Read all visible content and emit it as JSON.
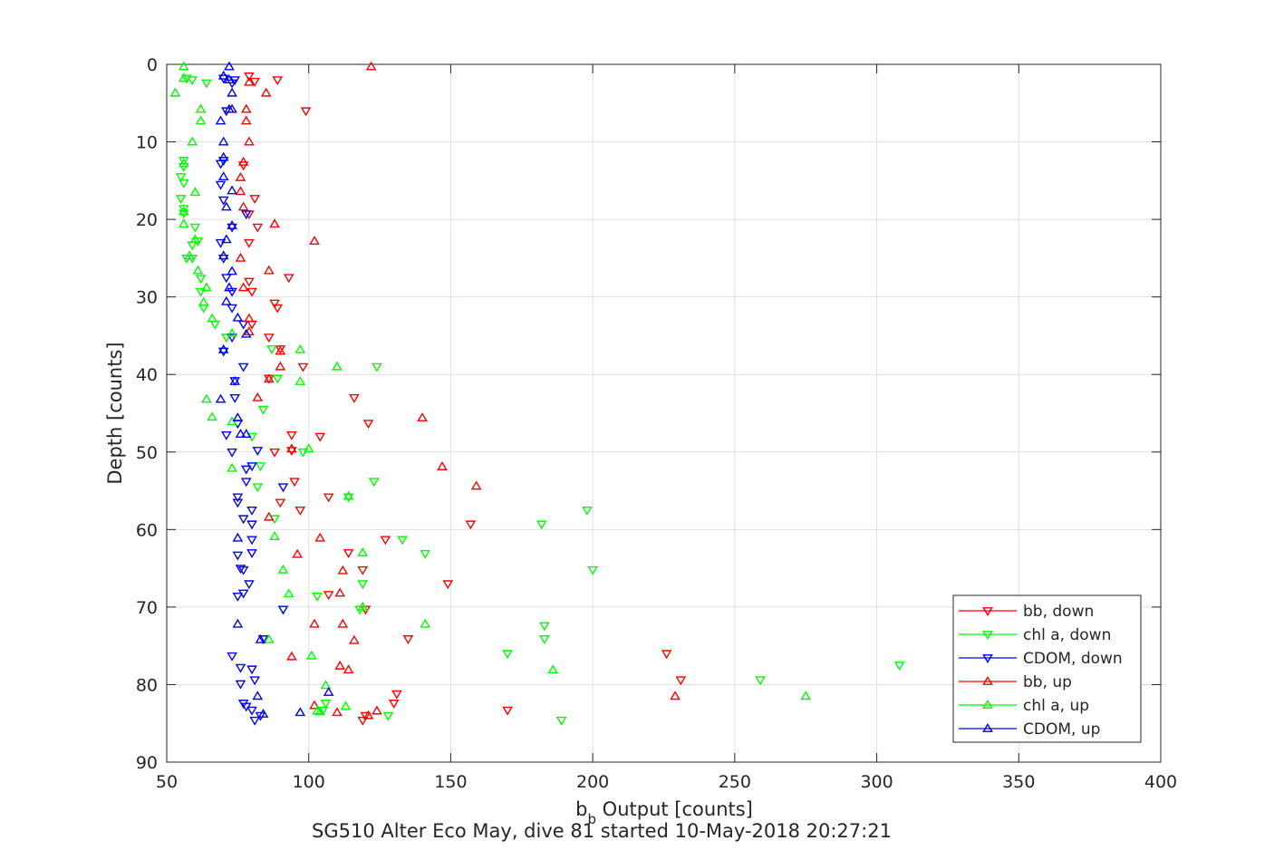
{
  "chart_data": {
    "type": "scatter",
    "xlabel_base": "b",
    "xlabel_sub": "b",
    "xlabel_rest": " Output [counts]",
    "ylabel": "Depth [counts]",
    "footer": "SG510 Alter Eco May, dive 81 started 10-May-2018 20:27:21",
    "xlim": [
      50,
      400
    ],
    "ylim": [
      0,
      90
    ],
    "y_reversed": true,
    "grid": true,
    "legend_position": "bottom-right",
    "x_ticks": [
      50,
      100,
      150,
      200,
      250,
      300,
      350,
      400
    ],
    "y_ticks": [
      0,
      10,
      20,
      30,
      40,
      50,
      60,
      70,
      80,
      90
    ],
    "series": [
      {
        "name": "bb, down",
        "color": "#ff0000",
        "marker": "triangle-down",
        "points": [
          [
            79,
            1.5
          ],
          [
            81,
            2.2
          ],
          [
            89,
            2
          ],
          [
            99,
            6
          ],
          [
            77,
            13
          ],
          [
            81,
            17.3
          ],
          [
            79,
            19.3
          ],
          [
            82,
            21
          ],
          [
            79,
            23
          ],
          [
            79,
            28
          ],
          [
            93,
            27.5
          ],
          [
            80,
            29.3
          ],
          [
            88,
            30.8
          ],
          [
            89,
            31.4
          ],
          [
            80,
            33.5
          ],
          [
            86,
            35.2
          ],
          [
            90,
            36.7
          ],
          [
            98,
            39
          ],
          [
            86,
            40.5
          ],
          [
            116,
            43
          ],
          [
            121,
            46.3
          ],
          [
            94,
            47.8
          ],
          [
            104,
            48
          ],
          [
            88,
            50
          ],
          [
            94,
            49.8
          ],
          [
            95,
            53.8
          ],
          [
            107,
            55.8
          ],
          [
            90,
            56.5
          ],
          [
            97,
            57.5
          ],
          [
            157,
            59.3
          ],
          [
            127,
            61.3
          ],
          [
            114,
            63
          ],
          [
            119,
            65.2
          ],
          [
            149,
            67
          ],
          [
            107,
            68.4
          ],
          [
            120,
            70.3
          ],
          [
            135,
            74.1
          ],
          [
            226,
            76
          ],
          [
            231,
            79.4
          ],
          [
            170,
            83.3
          ],
          [
            131,
            81.2
          ],
          [
            130,
            82.4
          ],
          [
            120,
            84
          ],
          [
            119,
            84.6
          ]
        ]
      },
      {
        "name": "chl a, down",
        "color": "#00ff00",
        "marker": "triangle-down",
        "points": [
          [
            57,
            1.8
          ],
          [
            59,
            2
          ],
          [
            64,
            2.4
          ],
          [
            56,
            12.4
          ],
          [
            56,
            13.2
          ],
          [
            55,
            14.5
          ],
          [
            56,
            15.3
          ],
          [
            55,
            17.3
          ],
          [
            56,
            18.6
          ],
          [
            56,
            19.2
          ],
          [
            60,
            21
          ],
          [
            61,
            22.8
          ],
          [
            59,
            23.3
          ],
          [
            57,
            25
          ],
          [
            59,
            25
          ],
          [
            62,
            27.6
          ],
          [
            62,
            29.3
          ],
          [
            63,
            31.4
          ],
          [
            67,
            33.5
          ],
          [
            71,
            35.2
          ],
          [
            87,
            36.7
          ],
          [
            124,
            39
          ],
          [
            89,
            40.5
          ],
          [
            84,
            44.5
          ],
          [
            80,
            48
          ],
          [
            98,
            50
          ],
          [
            83,
            51.8
          ],
          [
            123,
            53.8
          ],
          [
            82,
            54.5
          ],
          [
            114,
            55.8
          ],
          [
            198,
            57.5
          ],
          [
            88,
            58.6
          ],
          [
            182,
            59.3
          ],
          [
            133,
            61.3
          ],
          [
            141,
            63.1
          ],
          [
            200,
            65.2
          ],
          [
            119,
            67
          ],
          [
            103,
            68.6
          ],
          [
            91,
            70.3
          ],
          [
            118,
            70.3
          ],
          [
            183,
            72.4
          ],
          [
            183,
            74.1
          ],
          [
            170,
            76
          ],
          [
            308,
            77.5
          ],
          [
            259,
            79.4
          ],
          [
            106,
            82.4
          ],
          [
            105,
            83.3
          ],
          [
            128,
            84
          ],
          [
            189,
            84.6
          ]
        ]
      },
      {
        "name": "CDOM, down",
        "color": "#0000ff",
        "marker": "triangle-down",
        "points": [
          [
            70,
            1.8
          ],
          [
            74,
            2
          ],
          [
            73,
            2.4
          ],
          [
            71,
            6
          ],
          [
            69,
            12.8
          ],
          [
            70,
            12.4
          ],
          [
            69,
            15.5
          ],
          [
            70,
            17.5
          ],
          [
            78,
            19.3
          ],
          [
            73,
            21
          ],
          [
            69,
            23
          ],
          [
            70,
            25
          ],
          [
            71,
            27.5
          ],
          [
            73,
            29.3
          ],
          [
            73,
            31.4
          ],
          [
            77,
            33.5
          ],
          [
            73,
            35.2
          ],
          [
            70,
            37
          ],
          [
            77,
            39
          ],
          [
            74,
            40.8
          ],
          [
            74,
            43
          ],
          [
            75,
            46.3
          ],
          [
            71,
            47.8
          ],
          [
            73,
            50
          ],
          [
            82,
            49.8
          ],
          [
            80,
            51.8
          ],
          [
            78,
            52.2
          ],
          [
            78,
            53.8
          ],
          [
            91,
            54.5
          ],
          [
            75,
            55.8
          ],
          [
            75,
            56.5
          ],
          [
            80,
            57.5
          ],
          [
            77,
            58.6
          ],
          [
            80,
            59.3
          ],
          [
            80,
            61.3
          ],
          [
            75,
            63.3
          ],
          [
            80,
            63
          ],
          [
            76,
            65
          ],
          [
            77,
            65.2
          ],
          [
            79,
            67
          ],
          [
            75,
            68.6
          ],
          [
            77,
            68.2
          ],
          [
            91,
            70.3
          ],
          [
            84,
            74.1
          ],
          [
            76,
            77.8
          ],
          [
            73,
            76.3
          ],
          [
            80,
            78
          ],
          [
            76,
            79.9
          ],
          [
            81,
            79.4
          ],
          [
            77,
            82.4
          ],
          [
            78,
            82.8
          ],
          [
            80,
            83.3
          ],
          [
            83,
            84
          ],
          [
            81,
            84.6
          ]
        ]
      },
      {
        "name": "bb, up",
        "color": "#ff0000",
        "marker": "triangle-up",
        "points": [
          [
            122,
            0.3
          ],
          [
            79,
            2.3
          ],
          [
            85,
            3.7
          ],
          [
            78,
            5.8
          ],
          [
            78,
            7.3
          ],
          [
            79,
            10
          ],
          [
            77,
            12.6
          ],
          [
            76,
            14.6
          ],
          [
            76,
            16.4
          ],
          [
            77,
            18.4
          ],
          [
            88,
            20.6
          ],
          [
            102,
            22.8
          ],
          [
            76,
            25
          ],
          [
            86,
            26.6
          ],
          [
            77,
            28.8
          ],
          [
            79,
            32.8
          ],
          [
            79,
            34.5
          ],
          [
            90,
            37
          ],
          [
            90,
            39
          ],
          [
            86,
            40.6
          ],
          [
            82,
            43
          ],
          [
            140,
            45.6
          ],
          [
            94,
            49.6
          ],
          [
            147,
            51.9
          ],
          [
            159,
            54.4
          ],
          [
            86,
            58.4
          ],
          [
            104,
            61.1
          ],
          [
            96,
            63.2
          ],
          [
            112,
            65.3
          ],
          [
            111,
            68.2
          ],
          [
            102,
            72.2
          ],
          [
            112,
            72.2
          ],
          [
            116,
            74.3
          ],
          [
            94,
            76.4
          ],
          [
            111,
            77.6
          ],
          [
            114,
            78.1
          ],
          [
            229,
            81.5
          ],
          [
            102,
            82.7
          ],
          [
            124,
            83.4
          ],
          [
            121,
            84
          ],
          [
            110,
            83.6
          ]
        ]
      },
      {
        "name": "chl a, up",
        "color": "#00ff00",
        "marker": "triangle-up",
        "points": [
          [
            56,
            0.3
          ],
          [
            56,
            1.8
          ],
          [
            53,
            3.7
          ],
          [
            62,
            5.8
          ],
          [
            62,
            7.3
          ],
          [
            59,
            10
          ],
          [
            56,
            12.8
          ],
          [
            60,
            16.5
          ],
          [
            56,
            19
          ],
          [
            56,
            20.6
          ],
          [
            60,
            22.6
          ],
          [
            58,
            24.7
          ],
          [
            61,
            26.6
          ],
          [
            64,
            28.8
          ],
          [
            63,
            30.7
          ],
          [
            66,
            32.8
          ],
          [
            73,
            34.7
          ],
          [
            97,
            36.8
          ],
          [
            110,
            39
          ],
          [
            97,
            40.9
          ],
          [
            64,
            43.2
          ],
          [
            66,
            45.5
          ],
          [
            73,
            46.1
          ],
          [
            100,
            49.6
          ],
          [
            73,
            52.1
          ],
          [
            114,
            55.7
          ],
          [
            88,
            60.9
          ],
          [
            119,
            63
          ],
          [
            91,
            65.2
          ],
          [
            93,
            68.3
          ],
          [
            119,
            70
          ],
          [
            141,
            72.2
          ],
          [
            86,
            74.2
          ],
          [
            101,
            76.3
          ],
          [
            186,
            78.1
          ],
          [
            106,
            80.1
          ],
          [
            275,
            81.5
          ],
          [
            113,
            82.8
          ],
          [
            104,
            83.5
          ],
          [
            103,
            83.4
          ]
        ]
      },
      {
        "name": "CDOM, up",
        "color": "#0000ff",
        "marker": "triangle-up",
        "points": [
          [
            72,
            0.3
          ],
          [
            70,
            1.5
          ],
          [
            72,
            2
          ],
          [
            73,
            3.7
          ],
          [
            72,
            5.8
          ],
          [
            73,
            5.8
          ],
          [
            69,
            7.3
          ],
          [
            70,
            10
          ],
          [
            70,
            12
          ],
          [
            70,
            14.5
          ],
          [
            73,
            16.3
          ],
          [
            71,
            18.4
          ],
          [
            73,
            20.8
          ],
          [
            71,
            22.6
          ],
          [
            70,
            24.7
          ],
          [
            73,
            26.7
          ],
          [
            72,
            28.8
          ],
          [
            71,
            30.6
          ],
          [
            75,
            32.7
          ],
          [
            78,
            34.8
          ],
          [
            70,
            36.8
          ],
          [
            69,
            43.2
          ],
          [
            75,
            45.6
          ],
          [
            76,
            47.7
          ],
          [
            78,
            47.7
          ],
          [
            75,
            61.1
          ],
          [
            75,
            72.2
          ],
          [
            83,
            74.2
          ],
          [
            82,
            81.5
          ],
          [
            107,
            81
          ],
          [
            97,
            83.6
          ],
          [
            84,
            83.8
          ],
          [
            74,
            40.9
          ]
        ]
      }
    ]
  }
}
